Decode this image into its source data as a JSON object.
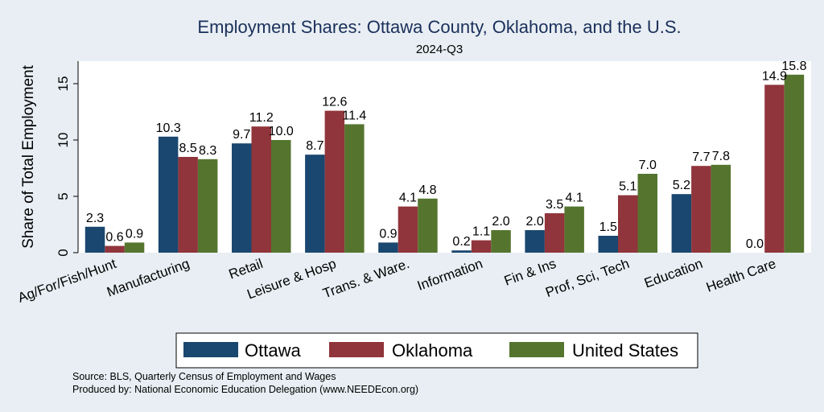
{
  "chart_data": {
    "type": "bar",
    "title": "Employment Shares: Ottawa County, Oklahoma, and the U.S.",
    "subtitle": "2024-Q3",
    "xlabel": "",
    "ylabel": "Share of Total Employment",
    "ylim": [
      0,
      17
    ],
    "yticks": [
      0,
      5,
      10,
      15
    ],
    "grid": false,
    "legend_position": "bottom",
    "categories": [
      "Ag/For/Fish/Hunt",
      "Manufacturing",
      "Retail",
      "Leisure & Hosp",
      "Trans. & Ware.",
      "Information",
      "Fin & Ins",
      "Prof, Sci, Tech",
      "Education",
      "Health Care"
    ],
    "series": [
      {
        "name": "Ottawa",
        "color": "#1a476f",
        "values": [
          2.3,
          10.3,
          9.7,
          8.7,
          0.9,
          0.2,
          2.0,
          1.5,
          5.2,
          0.0
        ],
        "labels": [
          "2.3",
          "10.3",
          "9.7",
          "8.7",
          "0.9",
          "0.2",
          "2.0",
          "1.5",
          "5.2",
          "0.0"
        ]
      },
      {
        "name": "Oklahoma",
        "color": "#90353b",
        "values": [
          0.6,
          8.5,
          11.2,
          12.6,
          4.1,
          1.1,
          3.5,
          5.1,
          7.7,
          14.9
        ],
        "labels": [
          "0.6",
          "8.5",
          "11.2",
          "12.6",
          "4.1",
          "1.1",
          "3.5",
          "5.1",
          "7.7",
          "14.9"
        ]
      },
      {
        "name": "United States",
        "color": "#55752f",
        "values": [
          0.9,
          8.3,
          10.0,
          11.4,
          4.8,
          2.0,
          4.1,
          7.0,
          7.8,
          15.8
        ],
        "labels": [
          "0.9",
          "8.3",
          "10.0",
          "11.4",
          "4.8",
          "2.0",
          "4.1",
          "7.0",
          "7.8",
          "15.8"
        ]
      }
    ]
  },
  "notes": {
    "source": "Source: BLS, Quarterly Census of Employment and Wages",
    "produced_by": "Produced by: National Economic Education Delegation (www.NEEDEcon.org)"
  }
}
